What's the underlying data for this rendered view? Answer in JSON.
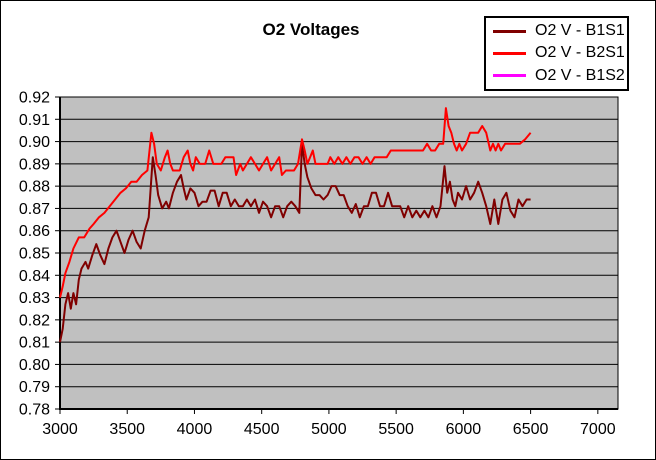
{
  "figure": {
    "background": "#FFFFFF",
    "border_color": "#000000",
    "plot_background": "#C0C0C0"
  },
  "chart": {
    "title": "O2 Voltages"
  },
  "chart_data": {
    "type": "line",
    "title": "O2 Voltages",
    "xlabel": "",
    "ylabel": "",
    "xlim": [
      3000,
      7150
    ],
    "ylim": [
      0.78,
      0.92
    ],
    "xticks": [
      3000,
      3500,
      4000,
      4500,
      5000,
      5500,
      6000,
      6500,
      7000
    ],
    "yticks": [
      0.78,
      0.79,
      0.8,
      0.81,
      0.82,
      0.83,
      0.84,
      0.85,
      0.86,
      0.87,
      0.88,
      0.89,
      0.9,
      0.91,
      0.92
    ],
    "ytick_decimals": 2,
    "grid": "horizontal",
    "gridline_color": "#000000",
    "plot_bg": "#C0C0C0",
    "legend_position": "top-right",
    "series": [
      {
        "name": "O2 V - B1S1",
        "color": "#800000",
        "points": [
          [
            3000,
            0.81
          ],
          [
            3020,
            0.816
          ],
          [
            3040,
            0.827
          ],
          [
            3060,
            0.832
          ],
          [
            3080,
            0.825
          ],
          [
            3100,
            0.832
          ],
          [
            3120,
            0.827
          ],
          [
            3140,
            0.838
          ],
          [
            3160,
            0.843
          ],
          [
            3190,
            0.846
          ],
          [
            3210,
            0.843
          ],
          [
            3240,
            0.849
          ],
          [
            3270,
            0.854
          ],
          [
            3300,
            0.849
          ],
          [
            3330,
            0.845
          ],
          [
            3360,
            0.852
          ],
          [
            3390,
            0.857
          ],
          [
            3420,
            0.86
          ],
          [
            3450,
            0.855
          ],
          [
            3480,
            0.85
          ],
          [
            3510,
            0.856
          ],
          [
            3540,
            0.86
          ],
          [
            3570,
            0.855
          ],
          [
            3600,
            0.852
          ],
          [
            3630,
            0.86
          ],
          [
            3660,
            0.866
          ],
          [
            3690,
            0.893
          ],
          [
            3710,
            0.885
          ],
          [
            3730,
            0.876
          ],
          [
            3760,
            0.87
          ],
          [
            3790,
            0.873
          ],
          [
            3810,
            0.87
          ],
          [
            3840,
            0.877
          ],
          [
            3870,
            0.882
          ],
          [
            3900,
            0.885
          ],
          [
            3920,
            0.879
          ],
          [
            3940,
            0.874
          ],
          [
            3970,
            0.879
          ],
          [
            4000,
            0.877
          ],
          [
            4030,
            0.871
          ],
          [
            4060,
            0.873
          ],
          [
            4090,
            0.873
          ],
          [
            4120,
            0.878
          ],
          [
            4150,
            0.878
          ],
          [
            4180,
            0.871
          ],
          [
            4210,
            0.877
          ],
          [
            4240,
            0.877
          ],
          [
            4270,
            0.871
          ],
          [
            4300,
            0.874
          ],
          [
            4330,
            0.871
          ],
          [
            4360,
            0.871
          ],
          [
            4390,
            0.874
          ],
          [
            4420,
            0.871
          ],
          [
            4450,
            0.874
          ],
          [
            4480,
            0.868
          ],
          [
            4510,
            0.873
          ],
          [
            4540,
            0.871
          ],
          [
            4570,
            0.866
          ],
          [
            4600,
            0.871
          ],
          [
            4630,
            0.871
          ],
          [
            4660,
            0.866
          ],
          [
            4690,
            0.871
          ],
          [
            4720,
            0.873
          ],
          [
            4750,
            0.871
          ],
          [
            4780,
            0.868
          ],
          [
            4800,
            0.899
          ],
          [
            4820,
            0.89
          ],
          [
            4840,
            0.884
          ],
          [
            4870,
            0.879
          ],
          [
            4900,
            0.876
          ],
          [
            4930,
            0.876
          ],
          [
            4960,
            0.874
          ],
          [
            4990,
            0.876
          ],
          [
            5020,
            0.88
          ],
          [
            5050,
            0.88
          ],
          [
            5080,
            0.876
          ],
          [
            5110,
            0.876
          ],
          [
            5140,
            0.871
          ],
          [
            5170,
            0.868
          ],
          [
            5200,
            0.872
          ],
          [
            5230,
            0.866
          ],
          [
            5260,
            0.871
          ],
          [
            5290,
            0.871
          ],
          [
            5320,
            0.877
          ],
          [
            5350,
            0.877
          ],
          [
            5380,
            0.871
          ],
          [
            5410,
            0.871
          ],
          [
            5440,
            0.877
          ],
          [
            5470,
            0.871
          ],
          [
            5500,
            0.871
          ],
          [
            5530,
            0.871
          ],
          [
            5560,
            0.866
          ],
          [
            5590,
            0.871
          ],
          [
            5620,
            0.866
          ],
          [
            5650,
            0.869
          ],
          [
            5680,
            0.866
          ],
          [
            5710,
            0.869
          ],
          [
            5740,
            0.866
          ],
          [
            5770,
            0.871
          ],
          [
            5800,
            0.866
          ],
          [
            5830,
            0.871
          ],
          [
            5860,
            0.889
          ],
          [
            5880,
            0.877
          ],
          [
            5900,
            0.882
          ],
          [
            5920,
            0.874
          ],
          [
            5940,
            0.871
          ],
          [
            5960,
            0.877
          ],
          [
            5990,
            0.874
          ],
          [
            6020,
            0.88
          ],
          [
            6050,
            0.874
          ],
          [
            6080,
            0.877
          ],
          [
            6110,
            0.882
          ],
          [
            6140,
            0.877
          ],
          [
            6170,
            0.871
          ],
          [
            6200,
            0.863
          ],
          [
            6230,
            0.874
          ],
          [
            6260,
            0.863
          ],
          [
            6290,
            0.874
          ],
          [
            6320,
            0.877
          ],
          [
            6350,
            0.869
          ],
          [
            6380,
            0.866
          ],
          [
            6410,
            0.874
          ],
          [
            6440,
            0.871
          ],
          [
            6470,
            0.874
          ],
          [
            6500,
            0.874
          ]
        ]
      },
      {
        "name": "O2 V - B2S1",
        "color": "#FF0000",
        "points": [
          [
            3000,
            0.83
          ],
          [
            3020,
            0.835
          ],
          [
            3040,
            0.841
          ],
          [
            3070,
            0.846
          ],
          [
            3100,
            0.852
          ],
          [
            3140,
            0.857
          ],
          [
            3180,
            0.857
          ],
          [
            3220,
            0.861
          ],
          [
            3250,
            0.863
          ],
          [
            3290,
            0.866
          ],
          [
            3330,
            0.868
          ],
          [
            3370,
            0.871
          ],
          [
            3410,
            0.874
          ],
          [
            3450,
            0.877
          ],
          [
            3490,
            0.879
          ],
          [
            3530,
            0.882
          ],
          [
            3570,
            0.882
          ],
          [
            3610,
            0.885
          ],
          [
            3650,
            0.887
          ],
          [
            3680,
            0.904
          ],
          [
            3700,
            0.899
          ],
          [
            3720,
            0.89
          ],
          [
            3750,
            0.887
          ],
          [
            3780,
            0.893
          ],
          [
            3800,
            0.896
          ],
          [
            3820,
            0.89
          ],
          [
            3840,
            0.887
          ],
          [
            3860,
            0.887
          ],
          [
            3890,
            0.887
          ],
          [
            3920,
            0.893
          ],
          [
            3950,
            0.896
          ],
          [
            3970,
            0.89
          ],
          [
            3990,
            0.887
          ],
          [
            4010,
            0.893
          ],
          [
            4040,
            0.89
          ],
          [
            4080,
            0.89
          ],
          [
            4110,
            0.896
          ],
          [
            4140,
            0.89
          ],
          [
            4170,
            0.89
          ],
          [
            4200,
            0.89
          ],
          [
            4230,
            0.893
          ],
          [
            4260,
            0.893
          ],
          [
            4290,
            0.893
          ],
          [
            4310,
            0.885
          ],
          [
            4340,
            0.89
          ],
          [
            4360,
            0.887
          ],
          [
            4390,
            0.89
          ],
          [
            4420,
            0.893
          ],
          [
            4450,
            0.89
          ],
          [
            4480,
            0.887
          ],
          [
            4510,
            0.89
          ],
          [
            4540,
            0.893
          ],
          [
            4570,
            0.887
          ],
          [
            4600,
            0.89
          ],
          [
            4630,
            0.893
          ],
          [
            4650,
            0.885
          ],
          [
            4680,
            0.887
          ],
          [
            4710,
            0.887
          ],
          [
            4740,
            0.887
          ],
          [
            4770,
            0.89
          ],
          [
            4800,
            0.901
          ],
          [
            4820,
            0.896
          ],
          [
            4840,
            0.89
          ],
          [
            4860,
            0.893
          ],
          [
            4880,
            0.896
          ],
          [
            4900,
            0.89
          ],
          [
            4930,
            0.89
          ],
          [
            4960,
            0.89
          ],
          [
            4990,
            0.89
          ],
          [
            5010,
            0.893
          ],
          [
            5040,
            0.89
          ],
          [
            5070,
            0.893
          ],
          [
            5100,
            0.89
          ],
          [
            5130,
            0.893
          ],
          [
            5160,
            0.89
          ],
          [
            5190,
            0.893
          ],
          [
            5220,
            0.893
          ],
          [
            5250,
            0.89
          ],
          [
            5280,
            0.893
          ],
          [
            5310,
            0.89
          ],
          [
            5340,
            0.893
          ],
          [
            5370,
            0.893
          ],
          [
            5400,
            0.893
          ],
          [
            5430,
            0.893
          ],
          [
            5460,
            0.896
          ],
          [
            5500,
            0.896
          ],
          [
            5540,
            0.896
          ],
          [
            5580,
            0.896
          ],
          [
            5620,
            0.896
          ],
          [
            5660,
            0.896
          ],
          [
            5700,
            0.896
          ],
          [
            5730,
            0.899
          ],
          [
            5760,
            0.896
          ],
          [
            5790,
            0.896
          ],
          [
            5820,
            0.899
          ],
          [
            5850,
            0.899
          ],
          [
            5870,
            0.915
          ],
          [
            5890,
            0.907
          ],
          [
            5910,
            0.904
          ],
          [
            5930,
            0.899
          ],
          [
            5950,
            0.896
          ],
          [
            5970,
            0.899
          ],
          [
            5990,
            0.896
          ],
          [
            6020,
            0.899
          ],
          [
            6050,
            0.904
          ],
          [
            6080,
            0.904
          ],
          [
            6110,
            0.904
          ],
          [
            6140,
            0.907
          ],
          [
            6170,
            0.904
          ],
          [
            6200,
            0.896
          ],
          [
            6220,
            0.899
          ],
          [
            6240,
            0.896
          ],
          [
            6260,
            0.899
          ],
          [
            6280,
            0.896
          ],
          [
            6310,
            0.899
          ],
          [
            6340,
            0.899
          ],
          [
            6380,
            0.899
          ],
          [
            6420,
            0.899
          ],
          [
            6460,
            0.901
          ],
          [
            6500,
            0.904
          ]
        ]
      },
      {
        "name": "O2 V - B1S2",
        "color": "#FF00FF",
        "points": []
      }
    ]
  }
}
